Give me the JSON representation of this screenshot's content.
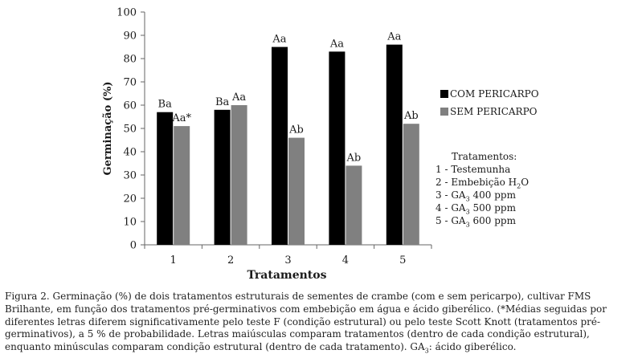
{
  "chart_data": {
    "type": "bar",
    "ylabel": "Germinação (%)",
    "xlabel": "Tratamentos",
    "categories": [
      "1",
      "2",
      "3",
      "4",
      "5"
    ],
    "ylim": [
      0,
      100
    ],
    "yticks": [
      "0",
      "10",
      "20",
      "30",
      "40",
      "50",
      "60",
      "70",
      "80",
      "90",
      "100"
    ],
    "grid": false,
    "legend_position": "right",
    "series": [
      {
        "name": "COM PERICARPO",
        "color": "#000000",
        "values": [
          57,
          58,
          85,
          83,
          86
        ],
        "labels": [
          "Ba",
          "Ba",
          "Aa",
          "Aa",
          "Aa"
        ]
      },
      {
        "name": "SEM PERICARPO",
        "color": "#808080",
        "values": [
          51,
          60,
          46,
          34,
          52
        ],
        "labels": [
          "Aa*",
          "Aa",
          "Ab",
          "Ab",
          "Ab"
        ]
      }
    ]
  },
  "treatments": {
    "title": "Tratamentos:",
    "items": [
      {
        "pre": "1 - Testemunha",
        "sub": "",
        "post": ""
      },
      {
        "pre": "2 -  Embebição H",
        "sub": "2",
        "post": "O"
      },
      {
        "pre": "3 - GA",
        "sub": "3",
        "post": " 400 ppm"
      },
      {
        "pre": "4 - GA",
        "sub": "3",
        "post": "  500 ppm"
      },
      {
        "pre": "5 - GA",
        "sub": "3",
        "post": " 600 ppm"
      }
    ]
  },
  "caption": {
    "pre": "Figura 2. Germinação (%) de dois tratamentos estruturais de sementes de crambe (com e sem pericarpo), cultivar FMS Brilhante, em função dos tratamentos pré-germinativos com embebição em água e ácido giberélico. (*Médias seguidas por diferentes letras diferem significativamente pelo teste F (condição estrutural) ou pelo teste Scott Knott (tratamentos pré-germinativos), a 5 % de probabilidade. Letras maiúsculas comparam tratamentos (dentro de cada condição estrutural), enquanto minúsculas comparam condição estrutural (dentro de cada tratamento). GA",
    "sub": "3",
    "post": ": ácido giberélico."
  }
}
